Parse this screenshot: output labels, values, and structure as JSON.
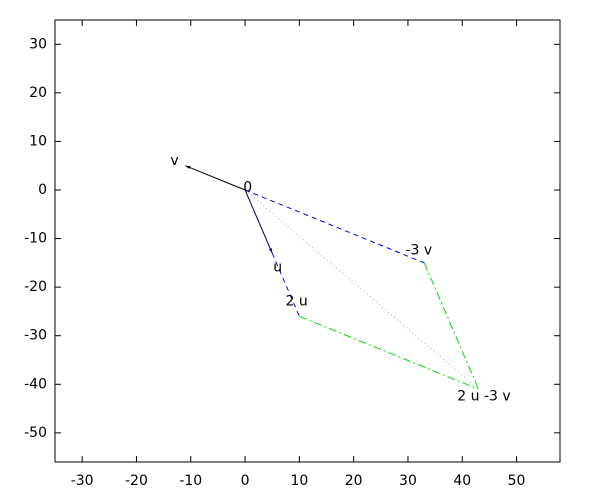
{
  "chart_data": {
    "type": "vector",
    "xlim": [
      -35,
      58
    ],
    "ylim": [
      -56,
      35
    ],
    "xticks": [
      -30,
      -20,
      -10,
      0,
      10,
      20,
      30,
      40,
      50
    ],
    "yticks": [
      -50,
      -40,
      -30,
      -20,
      -10,
      0,
      10,
      20,
      30
    ],
    "segments": [
      {
        "color": "#aaaaaa",
        "style": "dotted",
        "arrow": false,
        "x": [
          0,
          43
        ],
        "y": [
          0,
          -41
        ]
      },
      {
        "color": "#0000ff",
        "style": "dashed",
        "arrow": false,
        "x": [
          0,
          33
        ],
        "y": [
          0,
          -15
        ]
      },
      {
        "color": "#0000ff",
        "style": "dashed",
        "arrow": false,
        "x": [
          5,
          10
        ],
        "y": [
          -13,
          -26
        ]
      },
      {
        "color": "#00dd00",
        "style": "dashdot",
        "arrow": false,
        "x": [
          33,
          43
        ],
        "y": [
          -15,
          -41
        ]
      },
      {
        "color": "#00dd00",
        "style": "dashdot",
        "arrow": false,
        "x": [
          10,
          43
        ],
        "y": [
          -26,
          -41
        ]
      },
      {
        "color": "#000000",
        "style": "solid",
        "arrow": true,
        "x": [
          0,
          -11
        ],
        "y": [
          0,
          5
        ]
      },
      {
        "color": "#000060",
        "style": "solid",
        "arrow": true,
        "x": [
          0,
          5
        ],
        "y": [
          0,
          -13
        ]
      }
    ],
    "labels": [
      {
        "text": "v",
        "x": -13,
        "y": 6
      },
      {
        "text": "0",
        "x": 0.5,
        "y": 0.5
      },
      {
        "text": "u",
        "x": 6,
        "y": -16
      },
      {
        "text": "2 u",
        "x": 9.5,
        "y": -23
      },
      {
        "text": "-3 v",
        "x": 32,
        "y": -12.5
      },
      {
        "text": "2 u -3 v",
        "x": 44,
        "y": -42.5
      }
    ]
  }
}
